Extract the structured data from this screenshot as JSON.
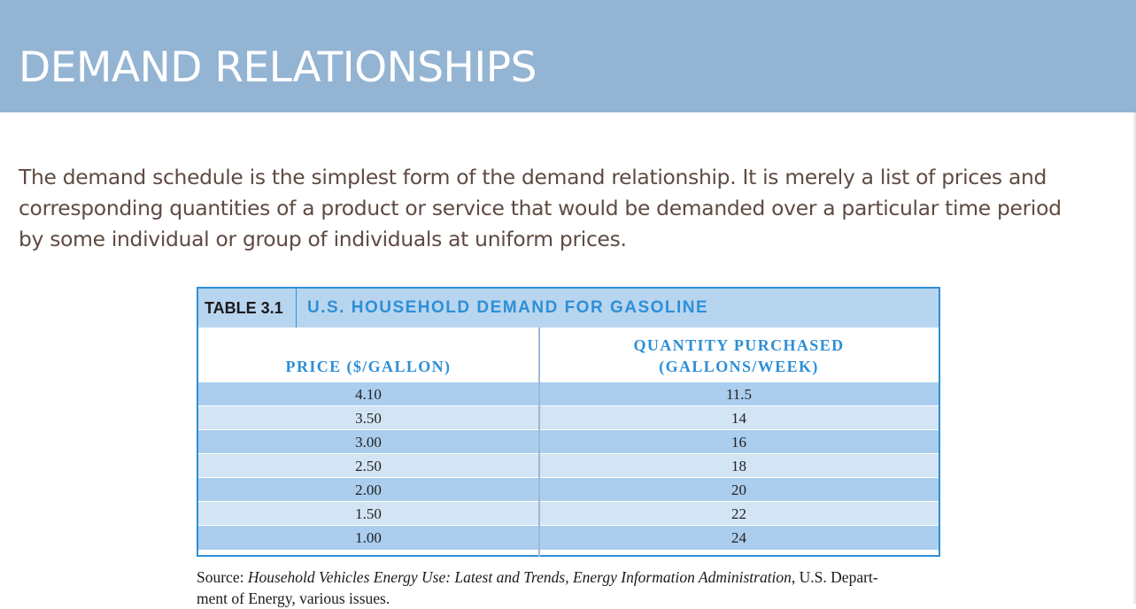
{
  "slide": {
    "title": "DEMAND RELATIONSHIPS",
    "body_lines": [
      "The demand schedule is the simplest form of the demand relationship. It is merely a list of prices and",
      "corresponding quantities of a product or service that would be demanded over a particular time period",
      "by some individual or group of individuals at uniform prices."
    ]
  },
  "table": {
    "number": "TABLE 3.1",
    "title": "U.S. HOUSEHOLD DEMAND FOR GASOLINE",
    "col_price": "PRICE ($/GALLON)",
    "col_qty_line1": "QUANTITY PURCHASED",
    "col_qty_line2": "(GALLONS/WEEK)",
    "rows": [
      {
        "price": "4.10",
        "qty": "11.5"
      },
      {
        "price": "3.50",
        "qty": "14"
      },
      {
        "price": "3.00",
        "qty": "16"
      },
      {
        "price": "2.50",
        "qty": "18"
      },
      {
        "price": "2.00",
        "qty": "20"
      },
      {
        "price": "1.50",
        "qty": "22"
      },
      {
        "price": "1.00",
        "qty": "24"
      }
    ],
    "colors": {
      "accent": "#2e8fd6",
      "header_bg": "#b8d5f0",
      "row_dark": "#abcdee",
      "row_light": "#d3e4f4"
    }
  },
  "source": {
    "prefix": "Source: ",
    "italic": "Household Vehicles Energy Use: Latest and Trends, Energy Information Administration",
    "suffix": ", U.S. Depart-",
    "line2": "ment of Energy, various issues."
  },
  "colors": {
    "title_bar": "#94b4d3",
    "title_text": "#ffffff",
    "body_text": "#5e4a42"
  }
}
